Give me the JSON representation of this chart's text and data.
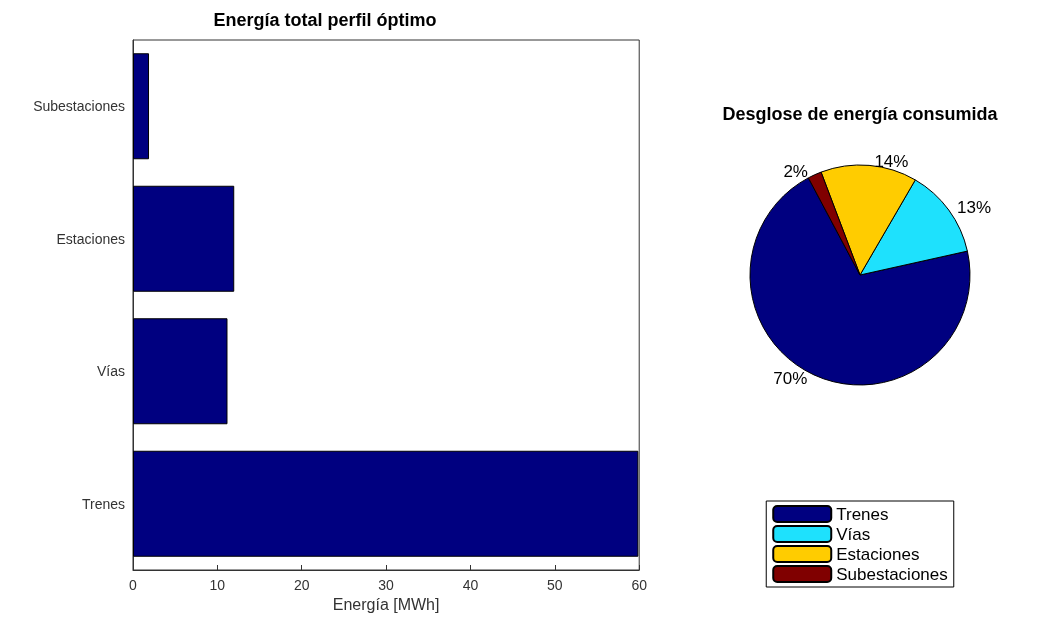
{
  "chart_data": [
    {
      "type": "bar",
      "title": "Energía total perfil óptimo",
      "orientation": "horizontal",
      "categories": [
        "Subestaciones",
        "Estaciones",
        "Vías",
        "Trenes"
      ],
      "values": [
        1.9,
        12.0,
        11.2,
        59.9
      ],
      "color": "#000080",
      "xlim": [
        0,
        60
      ],
      "xticks": [
        0,
        10,
        20,
        30,
        40,
        50,
        60
      ],
      "xlabel": "Energía [MWh]",
      "grid": false
    },
    {
      "type": "pie",
      "title": "Desglose de energía consumida",
      "categories": [
        "Trenes",
        "Vías",
        "Estaciones",
        "Subestaciones"
      ],
      "values": [
        70,
        13,
        14,
        2
      ],
      "value_labels": [
        "70%",
        "13%",
        "14%",
        "2%"
      ],
      "colors": [
        "#000080",
        "#1ee1fd",
        "#ffcc00",
        "#800000"
      ],
      "legend": "bottom"
    }
  ]
}
